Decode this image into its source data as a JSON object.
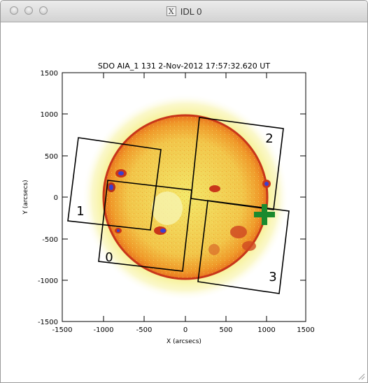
{
  "window": {
    "title": "IDL 0",
    "title_icon": "X"
  },
  "plot": {
    "title": "SDO AIA_1 131  2-Nov-2012 17:57:32.620 UT",
    "x_label": "X (arcsecs)",
    "y_label": "Y (arcsecs)",
    "x_ticks": [
      "-1500",
      "-1000",
      "-500",
      "0",
      "500",
      "1000",
      "1500"
    ],
    "y_ticks": [
      "1500",
      "1000",
      "500",
      "0",
      "-500",
      "-1000",
      "-1500"
    ],
    "box_labels": [
      "0",
      "1",
      "2",
      "3"
    ],
    "marker": "green-plus"
  },
  "colors": {
    "disk": "#f08a1e",
    "limb": "#c8361a",
    "background_noise": "#f4f08a",
    "marker": "#1a8a2e"
  }
}
